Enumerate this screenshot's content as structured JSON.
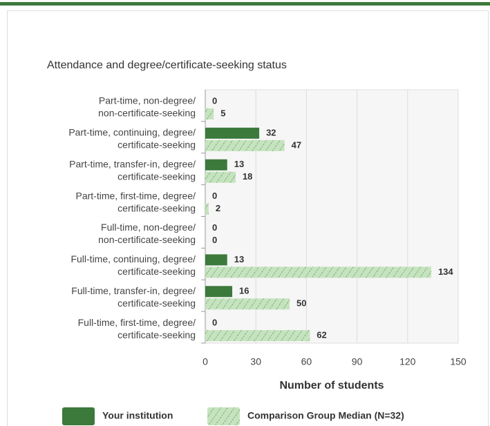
{
  "chart_data": {
    "type": "bar",
    "orientation": "horizontal",
    "title": "Attendance and degree/certificate-seeking status",
    "categories": [
      [
        "Part-time, non-degree/",
        "non-certificate-seeking"
      ],
      [
        "Part-time, continuing, degree/",
        "certificate-seeking"
      ],
      [
        "Part-time, transfer-in, degree/",
        "certificate-seeking"
      ],
      [
        "Part-time, first-time, degree/",
        "certificate-seeking"
      ],
      [
        "Full-time, non-degree/",
        "non-certificate-seeking"
      ],
      [
        "Full-time, continuing, degree/",
        "certificate-seeking"
      ],
      [
        "Full-time, transfer-in, degree/",
        "certificate-seeking"
      ],
      [
        "Full-time, first-time, degree/",
        "certificate-seeking"
      ]
    ],
    "series": [
      {
        "name": "Your institution",
        "color": "#3b7a3b",
        "values": [
          0,
          32,
          13,
          0,
          0,
          13,
          16,
          0
        ]
      },
      {
        "name": "Comparison Group Median (N=32)",
        "color": "#c6e3bf",
        "pattern": "hatched",
        "values": [
          5,
          47,
          18,
          2,
          0,
          134,
          50,
          62
        ]
      }
    ],
    "xlabel": "Number of students",
    "xlim": [
      0,
      150
    ],
    "xticks": [
      0,
      30,
      60,
      90,
      120,
      150
    ],
    "grid": true
  }
}
